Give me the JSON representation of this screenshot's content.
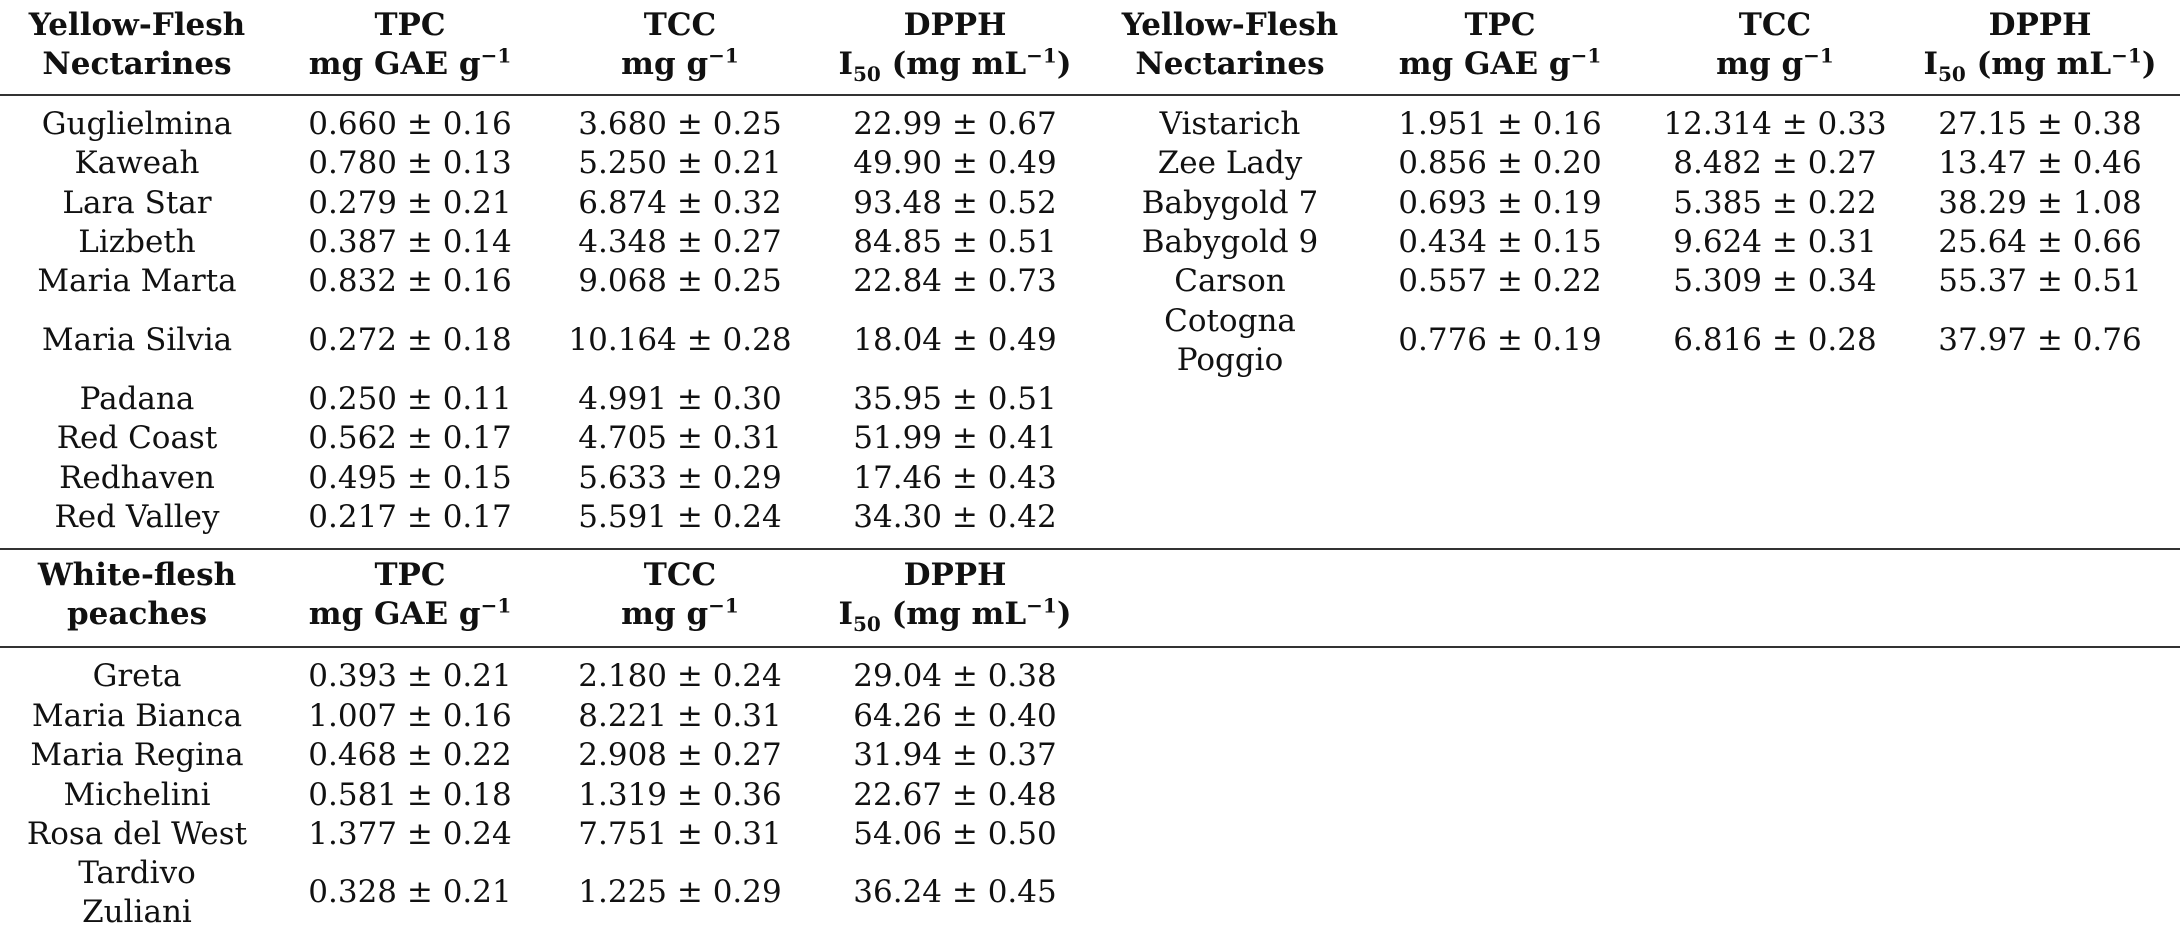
{
  "units": {
    "tpc_prefix": "mg GAE g",
    "tcc_prefix": "mg g",
    "inv_exp": "−1",
    "dpph_i": "I",
    "dpph_sub": "50",
    "dpph_mid": " (mg mL",
    "dpph_close": ")"
  },
  "blocks": [
    {
      "headers": {
        "group_line1": "Yellow-Flesh",
        "group_line2": "Nectarines",
        "tpc": "TPC",
        "tcc": "TCC",
        "dpph": "DPPH"
      },
      "rows": [
        {
          "name": "Guglielmina",
          "tpc": "0.660 ± 0.16",
          "tcc": "3.680 ± 0.25",
          "dpph": "22.99 ± 0.67"
        },
        {
          "name": "Kaweah",
          "tpc": "0.780 ± 0.13",
          "tcc": "5.250 ± 0.21",
          "dpph": "49.90 ± 0.49"
        },
        {
          "name": "Lara Star",
          "tpc": "0.279 ± 0.21",
          "tcc": "6.874 ± 0.32",
          "dpph": "93.48 ± 0.52"
        },
        {
          "name": "Lizbeth",
          "tpc": "0.387 ± 0.14",
          "tcc": "4.348 ± 0.27",
          "dpph": "84.85 ± 0.51"
        },
        {
          "name": "Maria Marta",
          "tpc": "0.832 ± 0.16",
          "tcc": "9.068 ± 0.25",
          "dpph": "22.84 ± 0.73"
        },
        {
          "name": "Maria Silvia",
          "tpc": "0.272 ± 0.18",
          "tcc": "10.164 ± 0.28",
          "dpph": "18.04 ± 0.49"
        },
        {
          "name": "Padana",
          "tpc": "0.250 ± 0.11",
          "tcc": "4.991 ± 0.30",
          "dpph": "35.95 ± 0.51"
        },
        {
          "name": "Red Coast",
          "tpc": "0.562 ± 0.17",
          "tcc": "4.705 ± 0.31",
          "dpph": "51.99 ± 0.41"
        },
        {
          "name": "Redhaven",
          "tpc": "0.495 ± 0.15",
          "tcc": "5.633 ± 0.29",
          "dpph": "17.46 ± 0.43"
        },
        {
          "name": "Red Valley",
          "tpc": "0.217 ± 0.17",
          "tcc": "5.591 ± 0.24",
          "dpph": "34.30 ± 0.42"
        }
      ]
    },
    {
      "headers": {
        "group_line1": "Yellow-Flesh",
        "group_line2": "Nectarines",
        "tpc": "TPC",
        "tcc": "TCC",
        "dpph": "DPPH"
      },
      "rows": [
        {
          "name": "Vistarich",
          "tpc": "1.951 ± 0.16",
          "tcc": "12.314 ± 0.33",
          "dpph": "27.15 ± 0.38"
        },
        {
          "name": "Zee Lady",
          "tpc": "0.856 ± 0.20",
          "tcc": "8.482 ± 0.27",
          "dpph": "13.47 ± 0.46"
        },
        {
          "name": "Babygold 7",
          "tpc": "0.693 ± 0.19",
          "tcc": "5.385 ± 0.22",
          "dpph": "38.29 ± 1.08"
        },
        {
          "name": "Babygold 9",
          "tpc": "0.434 ± 0.15",
          "tcc": "9.624 ± 0.31",
          "dpph": "25.64 ± 0.66"
        },
        {
          "name": "Carson",
          "tpc": "0.557 ± 0.22",
          "tcc": "5.309 ± 0.34",
          "dpph": "55.37 ± 0.51"
        },
        {
          "name_line1": "Cotogna",
          "name_line2": "Poggio",
          "tpc": "0.776 ± 0.19",
          "tcc": "6.816 ± 0.28",
          "dpph": "37.97 ± 0.76"
        }
      ]
    },
    {
      "headers": {
        "group_line1": "White-flesh",
        "group_line2": "peaches",
        "tpc": "TPC",
        "tcc": "TCC",
        "dpph": "DPPH"
      },
      "rows": [
        {
          "name": "Greta",
          "tpc": "0.393 ± 0.21",
          "tcc": "2.180 ± 0.24",
          "dpph": "29.04 ± 0.38"
        },
        {
          "name": "Maria Bianca",
          "tpc": "1.007 ± 0.16",
          "tcc": "8.221 ± 0.31",
          "dpph": "64.26 ± 0.40"
        },
        {
          "name": "Maria Regina",
          "tpc": "0.468 ± 0.22",
          "tcc": "2.908 ± 0.27",
          "dpph": "31.94 ± 0.37"
        },
        {
          "name": "Michelini",
          "tpc": "0.581 ± 0.18",
          "tcc": "1.319 ± 0.36",
          "dpph": "22.67 ± 0.48"
        },
        {
          "name": "Rosa del West",
          "tpc": "1.377 ± 0.24",
          "tcc": "7.751 ± 0.31",
          "dpph": "54.06 ± 0.50"
        },
        {
          "name_line1": "Tardivo",
          "name_line2": "Zuliani",
          "tpc": "0.328 ± 0.21",
          "tcc": "1.225 ± 0.29",
          "dpph": "36.24 ± 0.45"
        }
      ]
    }
  ]
}
